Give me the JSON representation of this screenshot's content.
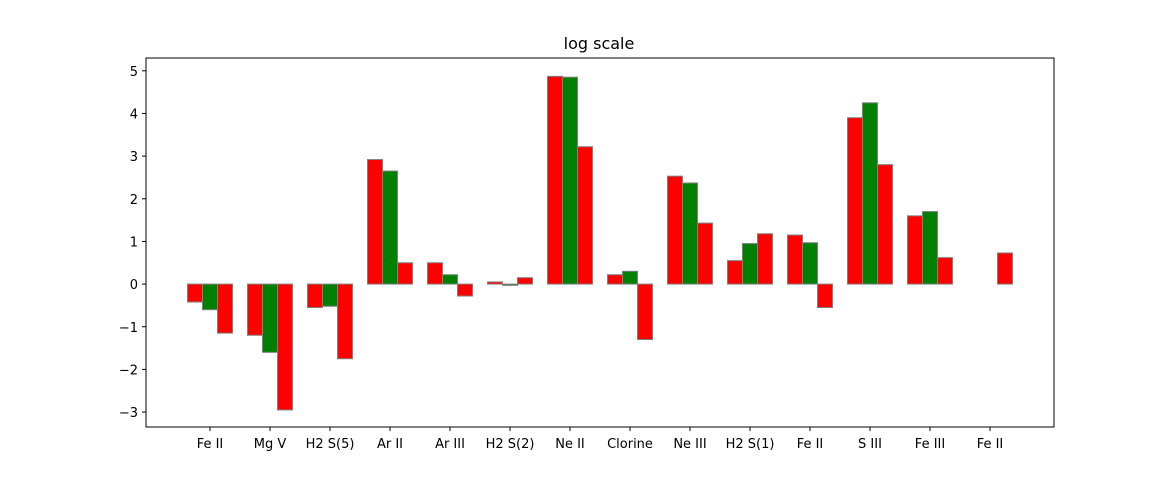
{
  "chart_data": {
    "type": "bar",
    "title": "log scale",
    "xlabel": "",
    "ylabel": "",
    "ylim": [
      -3.35,
      5.3
    ],
    "yticks": [
      -3,
      -2,
      -1,
      0,
      1,
      2,
      3,
      4,
      5
    ],
    "ytick_labels": [
      "−3",
      "−2",
      "−1",
      "0",
      "1",
      "2",
      "3",
      "4",
      "5"
    ],
    "categories": [
      "Fe II",
      "Mg V",
      "H2 S(5)",
      "Ar II",
      "Ar III",
      "H2 S(2)",
      "Ne II",
      "Clorine",
      "Ne III",
      "H2 S(1)",
      "Fe II",
      "S III",
      "Fe III",
      "Fe II"
    ],
    "series": [
      {
        "color": "#ff0000",
        "values": [
          -0.42,
          -1.2,
          -0.55,
          2.92,
          0.5,
          0.05,
          4.87,
          0.22,
          2.53,
          0.55,
          1.15,
          3.9,
          1.6,
          null
        ]
      },
      {
        "color": "#008000",
        "values": [
          -0.6,
          -1.6,
          -0.52,
          2.65,
          0.22,
          -0.03,
          4.85,
          0.3,
          2.37,
          0.95,
          0.97,
          4.25,
          1.7,
          null
        ]
      },
      {
        "color": "#ff0000",
        "values": [
          -1.15,
          -2.95,
          -1.75,
          0.5,
          -0.28,
          0.15,
          3.22,
          -1.3,
          1.43,
          1.18,
          -0.55,
          2.8,
          0.62,
          0.73
        ]
      }
    ],
    "bar_edge_color": "#808080",
    "grid": false,
    "legend": "none"
  }
}
